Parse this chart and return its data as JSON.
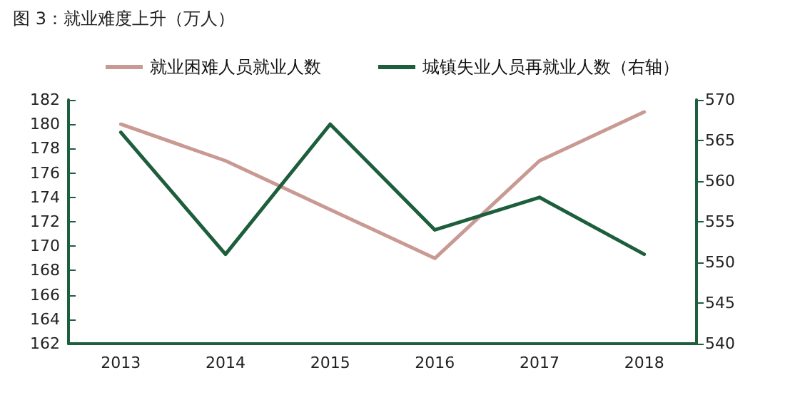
{
  "chart_data": {
    "type": "line",
    "title": "图 3：就业难度上升（万人）",
    "categories": [
      "2013",
      "2014",
      "2015",
      "2016",
      "2017",
      "2018"
    ],
    "series": [
      {
        "name": "就业困难人员就业人数",
        "color": "#c99a94",
        "values": [
          180,
          177,
          173,
          169,
          177,
          181
        ]
      },
      {
        "name": "城镇失业人员再就业人数（右轴）",
        "color": "#1d5e3c",
        "axis": "y2",
        "values": [
          566,
          551,
          567,
          554,
          558,
          551
        ]
      }
    ],
    "ylim": [
      162,
      182
    ],
    "yticks": [
      162,
      164,
      166,
      168,
      170,
      172,
      174,
      176,
      178,
      180,
      182
    ],
    "y2lim": [
      540,
      570
    ],
    "y2ticks": [
      540,
      545,
      550,
      555,
      560,
      565,
      570
    ],
    "grid": false,
    "legend": "top",
    "marker": "none",
    "line_style": "solid"
  }
}
